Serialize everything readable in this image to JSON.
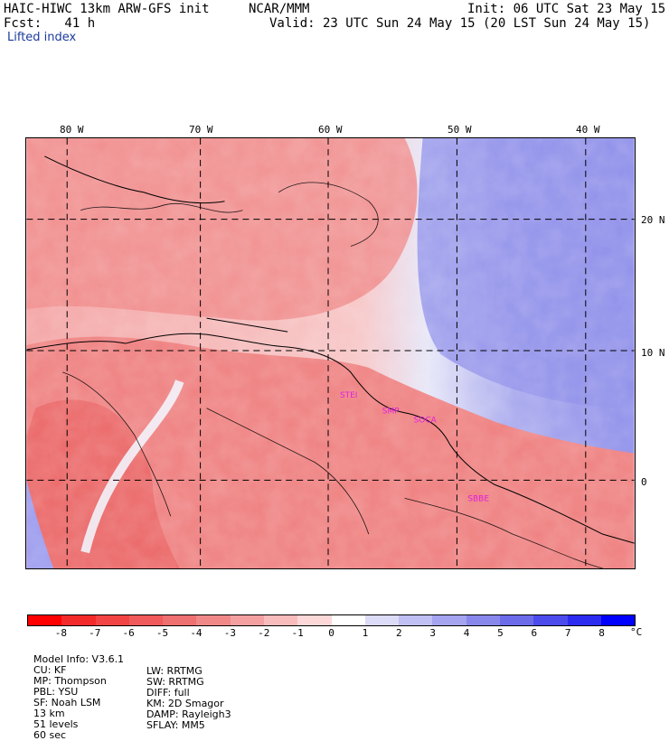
{
  "header": {
    "model_title": "HAIC-HIWC 13km ARW-GFS init",
    "org": "NCAR/MMM",
    "init": "Init: 06 UTC Sat 23 May 15",
    "fcst": "Fcst:   41 h",
    "valid": "Valid: 23 UTC Sun 24 May 15 (20 LST Sun 24 May 15)",
    "field": "Lifted index"
  },
  "map": {
    "lon_labels": [
      "80 W",
      "70 W",
      "60 W",
      "50 W",
      "40 W"
    ],
    "lat_labels": [
      "20 N",
      "10 N",
      "0"
    ],
    "stations": [
      "STEI",
      "SMP",
      "SOCA",
      "SBBE"
    ],
    "station_color": "#e020e0"
  },
  "colorbar": {
    "levels": [
      "-8",
      "-7",
      "-6",
      "-5",
      "-4",
      "-3",
      "-2",
      "-1",
      "0",
      "1",
      "2",
      "3",
      "4",
      "5",
      "6",
      "7",
      "8"
    ],
    "unit": "°C",
    "colors": [
      "#ff0000",
      "#f32a2a",
      "#f24444",
      "#f05a5a",
      "#ee7070",
      "#f08888",
      "#f4a0a0",
      "#f8bcbc",
      "#fcd8d8",
      "#ffffff",
      "#dcdcf8",
      "#c0c0f4",
      "#a4a4f0",
      "#8888ec",
      "#6c6cea",
      "#4c4cec",
      "#2c2cf0",
      "#0000ff"
    ]
  },
  "footer": {
    "line1": [
      "Model Info: V3.6.1",
      "CU: KF",
      "MP: Thompson",
      "PBL: YSU",
      "SF: Noah LSM",
      "13 km",
      "51 levels",
      "60 sec"
    ],
    "line2": [
      "LW: RRTMG",
      "SW: RRTMG",
      "DIFF: full",
      "KM: 2D Smagor",
      "DAMP: Rayleigh3",
      "SFLAY: MM5"
    ]
  }
}
